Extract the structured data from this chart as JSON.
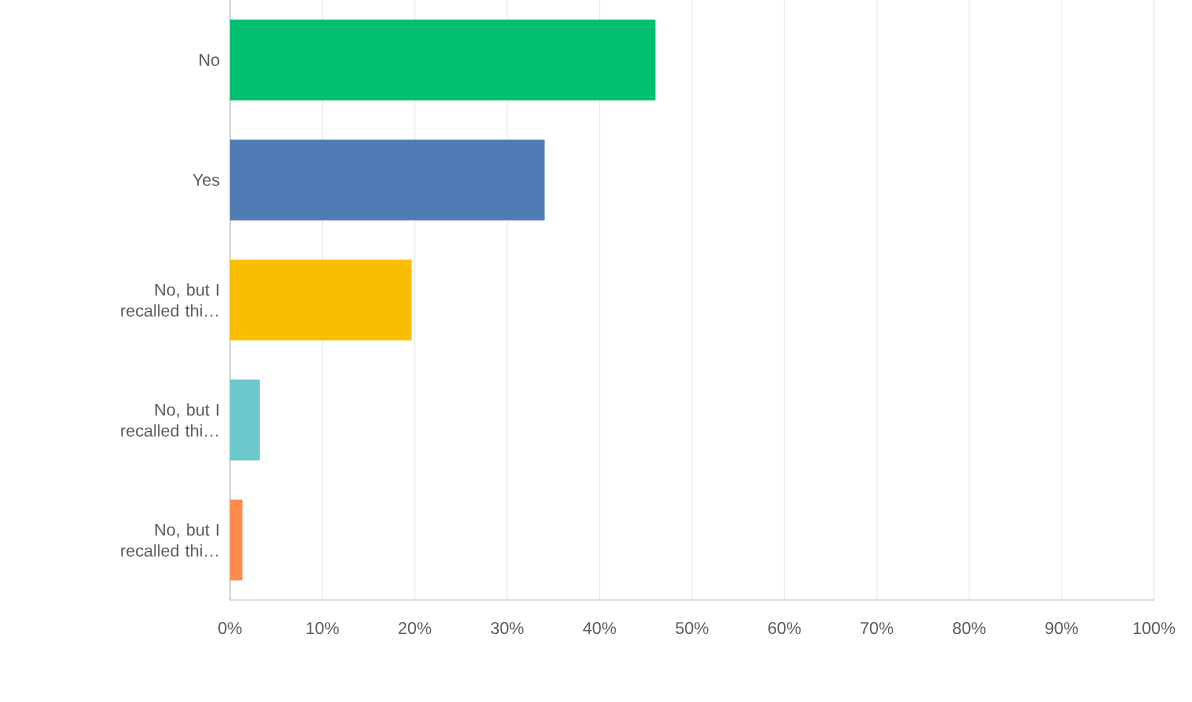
{
  "chart_data": {
    "type": "bar",
    "orientation": "horizontal",
    "categories": [
      "No",
      "Yes",
      "No, but I recalled thi…",
      "No, but I recalled thi…",
      "No, but I recalled thi…"
    ],
    "values": [
      46.0,
      34.0,
      19.6,
      3.2,
      1.3
    ],
    "colors": [
      "#00bf6f",
      "#507cb6",
      "#f9be00",
      "#6bc8cd",
      "#ff8b4f"
    ],
    "xlim": [
      0,
      100
    ],
    "xticks": [
      {
        "value": 0,
        "label": "0%"
      },
      {
        "value": 10,
        "label": "10%"
      },
      {
        "value": 20,
        "label": "20%"
      },
      {
        "value": 30,
        "label": "30%"
      },
      {
        "value": 40,
        "label": "40%"
      },
      {
        "value": 50,
        "label": "50%"
      },
      {
        "value": 60,
        "label": "60%"
      },
      {
        "value": 70,
        "label": "70%"
      },
      {
        "value": 80,
        "label": "80%"
      },
      {
        "value": 90,
        "label": "90%"
      },
      {
        "value": 100,
        "label": "100%"
      }
    ],
    "grid": "x"
  }
}
